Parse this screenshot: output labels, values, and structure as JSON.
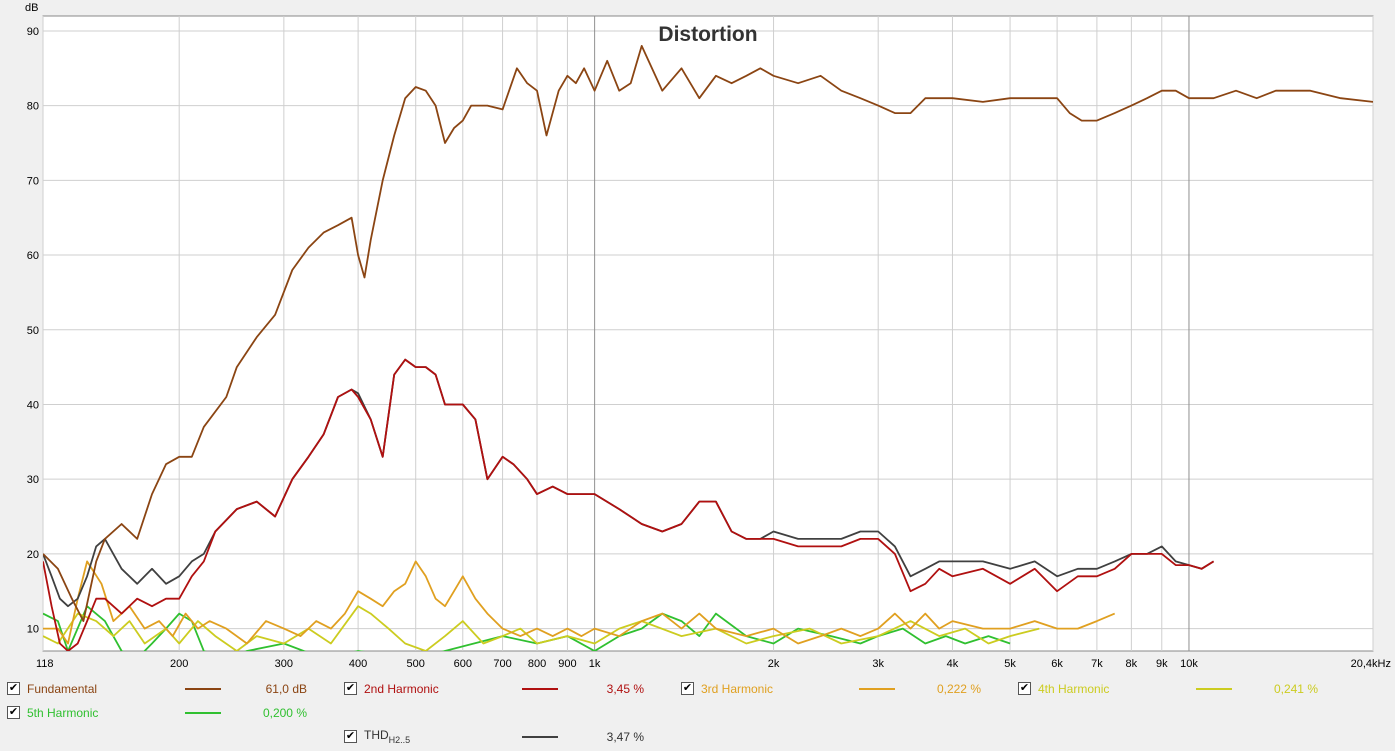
{
  "chart_data": {
    "type": "line",
    "title": "Distortion",
    "ylabel": "dB",
    "xscale": "log",
    "xlim": [
      118,
      20400
    ],
    "ylim": [
      7,
      92
    ],
    "yticks": [
      10,
      20,
      30,
      40,
      50,
      60,
      70,
      80,
      90
    ],
    "xticks": [
      {
        "v": 118,
        "label": "118"
      },
      {
        "v": 200,
        "label": "200"
      },
      {
        "v": 300,
        "label": "300"
      },
      {
        "v": 400,
        "label": "400"
      },
      {
        "v": 500,
        "label": "500"
      },
      {
        "v": 600,
        "label": "600"
      },
      {
        "v": 700,
        "label": "700"
      },
      {
        "v": 800,
        "label": "800"
      },
      {
        "v": 900,
        "label": "900"
      },
      {
        "v": 1000,
        "label": "1k"
      },
      {
        "v": 2000,
        "label": "2k"
      },
      {
        "v": 3000,
        "label": "3k"
      },
      {
        "v": 4000,
        "label": "4k"
      },
      {
        "v": 5000,
        "label": "5k"
      },
      {
        "v": 6000,
        "label": "6k"
      },
      {
        "v": 7000,
        "label": "7k"
      },
      {
        "v": 8000,
        "label": "8k"
      },
      {
        "v": 9000,
        "label": "9k"
      },
      {
        "v": 10000,
        "label": "10k"
      },
      {
        "v": 20400,
        "label": "20,4kHz"
      }
    ],
    "grid": true,
    "series": [
      {
        "name": "Fundamental",
        "color": "#8b4513",
        "x": [
          118,
          125,
          132,
          138,
          145,
          150,
          160,
          170,
          180,
          190,
          200,
          210,
          220,
          240,
          250,
          270,
          290,
          310,
          330,
          350,
          370,
          390,
          400,
          410,
          420,
          440,
          460,
          480,
          500,
          520,
          540,
          560,
          580,
          600,
          620,
          660,
          700,
          740,
          770,
          800,
          830,
          870,
          900,
          930,
          960,
          1000,
          1050,
          1100,
          1150,
          1200,
          1300,
          1400,
          1500,
          1600,
          1700,
          1800,
          1900,
          2000,
          2200,
          2400,
          2600,
          2800,
          3000,
          3200,
          3400,
          3600,
          3800,
          4000,
          4500,
          5000,
          5500,
          6000,
          6300,
          6600,
          7000,
          7500,
          8000,
          8500,
          9000,
          9500,
          10000,
          11000,
          12000,
          13000,
          14000,
          15000,
          16000,
          18000,
          20400
        ],
        "y": [
          20,
          18,
          14,
          11,
          19,
          22,
          24,
          22,
          28,
          32,
          33,
          33,
          37,
          41,
          45,
          49,
          52,
          58,
          61,
          63,
          64,
          65,
          60,
          57,
          62,
          70,
          76,
          81,
          82.5,
          82,
          80,
          75,
          77,
          78,
          80,
          80,
          79.5,
          85,
          83,
          82,
          76,
          82,
          84,
          83,
          85,
          82,
          86,
          82,
          83,
          88,
          82,
          85,
          81,
          84,
          83,
          84,
          85,
          84,
          83,
          84,
          82,
          81,
          80,
          79,
          79,
          81,
          81,
          81,
          80.5,
          81,
          81,
          81,
          79,
          78,
          78,
          79,
          80,
          81,
          82,
          82,
          81,
          81,
          82,
          81,
          82,
          82,
          82,
          81,
          80.5
        ]
      },
      {
        "name": "2nd Harmonic",
        "color": "#b01010",
        "x": [
          118,
          122,
          126,
          130,
          135,
          140,
          145,
          150,
          160,
          170,
          180,
          190,
          200,
          210,
          220,
          230,
          250,
          270,
          290,
          310,
          330,
          350,
          370,
          390,
          400,
          420,
          440,
          460,
          480,
          500,
          520,
          540,
          560,
          600,
          630,
          660,
          700,
          730,
          770,
          800,
          850,
          900,
          950,
          1000,
          1100,
          1200,
          1300,
          1400,
          1500,
          1600,
          1700,
          1800,
          1900,
          2000,
          2200,
          2400,
          2600,
          2800,
          3000,
          3200,
          3400,
          3600,
          3800,
          4000,
          4500,
          5000,
          5500,
          6000,
          6500,
          7000,
          7500,
          8000,
          8500,
          9000,
          9500,
          10000,
          10500,
          11000
        ],
        "y": [
          19,
          13,
          8,
          7,
          8,
          11,
          14,
          14,
          12,
          14,
          13,
          14,
          14,
          17,
          19,
          23,
          26,
          27,
          25,
          30,
          33,
          36,
          41,
          42,
          41,
          38,
          33,
          44,
          46,
          45,
          45,
          44,
          40,
          40,
          38,
          30,
          33,
          32,
          30,
          28,
          29,
          28,
          28,
          28,
          26,
          24,
          23,
          24,
          27,
          27,
          23,
          22,
          22,
          22,
          21,
          21,
          21,
          22,
          22,
          20,
          15,
          16,
          18,
          17,
          18,
          16,
          18,
          15,
          17,
          17,
          18,
          20,
          20,
          20,
          18.5,
          18.5,
          18,
          19
        ]
      },
      {
        "name": "3rd Harmonic",
        "color": "#e0a020",
        "x": [
          118,
          125,
          130,
          135,
          140,
          148,
          155,
          165,
          175,
          185,
          195,
          205,
          215,
          225,
          240,
          260,
          280,
          300,
          320,
          340,
          360,
          380,
          400,
          420,
          440,
          460,
          480,
          500,
          520,
          540,
          560,
          580,
          600,
          630,
          660,
          700,
          750,
          800,
          850,
          900,
          950,
          1000,
          1100,
          1200,
          1300,
          1400,
          1500,
          1600,
          1800,
          2000,
          2200,
          2400,
          2600,
          2800,
          3000,
          3200,
          3400,
          3600,
          3800,
          4000,
          4500,
          5000,
          5500,
          6000,
          6500,
          7000,
          7500
        ],
        "y": [
          10,
          10,
          8,
          14,
          19,
          16,
          11,
          13,
          10,
          11,
          9,
          12,
          10,
          11,
          10,
          8,
          11,
          10,
          9,
          11,
          10,
          12,
          15,
          14,
          13,
          15,
          16,
          19,
          17,
          14,
          13,
          15,
          17,
          14,
          12,
          10,
          9,
          10,
          9,
          10,
          9,
          10,
          9,
          11,
          12,
          10,
          12,
          10,
          9,
          10,
          8,
          9,
          10,
          9,
          10,
          12,
          10,
          12,
          10,
          11,
          10,
          10,
          11,
          10,
          10,
          11,
          12
        ]
      },
      {
        "name": "4th Harmonic",
        "color": "#cccc20",
        "x": [
          118,
          125,
          135,
          145,
          155,
          165,
          175,
          190,
          200,
          215,
          230,
          250,
          270,
          300,
          330,
          360,
          400,
          420,
          450,
          480,
          520,
          560,
          600,
          650,
          700,
          750,
          800,
          900,
          1000,
          1100,
          1200,
          1400,
          1600,
          1800,
          2000,
          2300,
          2600,
          3000,
          3400,
          3800,
          4200,
          4600,
          5000,
          5600
        ],
        "y": [
          9,
          8,
          12,
          11,
          9,
          11,
          8,
          10,
          8,
          11,
          9,
          7,
          9,
          8,
          10,
          8,
          13,
          12,
          10,
          8,
          7,
          9,
          11,
          8,
          9,
          10,
          8,
          9,
          8,
          10,
          11,
          9,
          10,
          8,
          9,
          10,
          8,
          9,
          11,
          9,
          10,
          8,
          9,
          10
        ]
      },
      {
        "name": "5th Harmonic",
        "color": "#30c030",
        "x": [
          118,
          125,
          130,
          140,
          150,
          160,
          170,
          180,
          190,
          200,
          210,
          220,
          240,
          260,
          300,
          350,
          400,
          500,
          700,
          800,
          900,
          1000,
          1100,
          1200,
          1300,
          1400,
          1500,
          1600,
          1800,
          2000,
          2200,
          2500,
          2800,
          3000,
          3300,
          3600,
          3900,
          4200,
          4600,
          5000
        ],
        "y": [
          12,
          11,
          7,
          13,
          11,
          7,
          6,
          8,
          10,
          12,
          11,
          7,
          6,
          7,
          8,
          6,
          7,
          6,
          9,
          8,
          9,
          7,
          9,
          10,
          12,
          11,
          9,
          12,
          9,
          8,
          10,
          9,
          8,
          9,
          10,
          8,
          9,
          8,
          9,
          8
        ]
      },
      {
        "name": "THD",
        "color": "#404040",
        "x": [
          118,
          122,
          126,
          130,
          135,
          140,
          145,
          150,
          160,
          170,
          180,
          190,
          200,
          210,
          220,
          230,
          250,
          270,
          290,
          310,
          330,
          350,
          370,
          390,
          400,
          420,
          440,
          460,
          480,
          500,
          520,
          540,
          560,
          600,
          630,
          660,
          700,
          730,
          770,
          800,
          850,
          900,
          950,
          1000,
          1100,
          1200,
          1300,
          1400,
          1500,
          1600,
          1700,
          1800,
          1900,
          2000,
          2200,
          2400,
          2600,
          2800,
          3000,
          3200,
          3400,
          3600,
          3800,
          4000,
          4500,
          5000,
          5500,
          6000,
          6500,
          7000,
          7500,
          8000,
          8500,
          9000,
          9500,
          10000,
          10500,
          11000
        ],
        "y": [
          20,
          17,
          14,
          13,
          14,
          17,
          21,
          22,
          18,
          16,
          18,
          16,
          17,
          19,
          20,
          23,
          26,
          27,
          25,
          30,
          33,
          36,
          41,
          42,
          41.5,
          38,
          33,
          44,
          46,
          45,
          45,
          44,
          40,
          40,
          38,
          30,
          33,
          32,
          30,
          28,
          29,
          28,
          28,
          28,
          26,
          24,
          23,
          24,
          27,
          27,
          23,
          22,
          22,
          23,
          22,
          22,
          22,
          23,
          23,
          21,
          17,
          18,
          19,
          19,
          19,
          18,
          19,
          17,
          18,
          18,
          19,
          20,
          20,
          21,
          19,
          18.5,
          18,
          19
        ]
      }
    ]
  },
  "legend": [
    {
      "id": "fundamental",
      "label": "Fundamental",
      "value": "61,0 dB",
      "checked": "✔",
      "color": "#8b4513"
    },
    {
      "id": "h2",
      "label": "2nd Harmonic",
      "value": "3,45 %",
      "checked": "✔",
      "color": "#b01010"
    },
    {
      "id": "h3",
      "label": "3rd Harmonic",
      "value": "0,222 %",
      "checked": "✔",
      "color": "#e0a020"
    },
    {
      "id": "h4",
      "label": "4th Harmonic",
      "value": "0,241 %",
      "checked": "✔",
      "color": "#cccc20"
    },
    {
      "id": "h5",
      "label": "5th Harmonic",
      "value": "0,200 %",
      "checked": "✔",
      "color": "#30c030"
    },
    {
      "id": "thd",
      "label": "THD",
      "label_sub": "H2..5",
      "value": "3,47 %",
      "checked": "✔",
      "color": "#404040"
    }
  ]
}
